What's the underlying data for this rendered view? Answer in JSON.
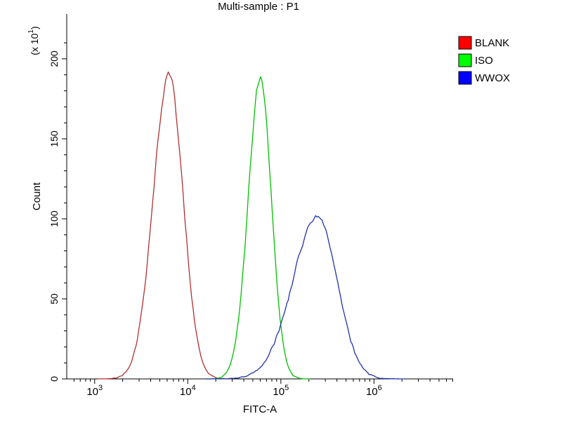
{
  "window": {
    "background": "#ffffff"
  },
  "chart_data": {
    "type": "line",
    "chart_kind": "flow-cytometry-histogram",
    "title": "Multi-sample : P1",
    "xlabel": "FITC-A",
    "ylabel": "Count",
    "y_axis_multiplier_label": "(x 10^1)",
    "x_scale": "log10",
    "x_range_log10": [
      2.7,
      6.85
    ],
    "ylim": [
      0,
      228
    ],
    "y_ticks": [
      0,
      50,
      100,
      150,
      200
    ],
    "y_minor_tick_step": 10,
    "x_ticks": [
      {
        "value": 1000,
        "label": "10^3"
      },
      {
        "value": 10000,
        "label": "10^4"
      },
      {
        "value": 100000,
        "label": "10^5"
      },
      {
        "value": 1000000,
        "label": "10^6"
      }
    ],
    "grid": false,
    "legend_position": "top-right",
    "axis_color": "#000000",
    "series": [
      {
        "name": "BLANK",
        "curve_color": "#b23030",
        "legend_color": "#ff0000",
        "peak_x": 6300,
        "peak_count": 190,
        "sigma_log10_left": 0.17,
        "sigma_log10_right": 0.15,
        "points": [
          [
            2000,
            3
          ],
          [
            3160,
            40
          ],
          [
            4470,
            129
          ],
          [
            6300,
            190
          ],
          [
            8910,
            115
          ],
          [
            12600,
            26
          ],
          [
            20000,
            1
          ]
        ]
      },
      {
        "name": "ISO",
        "curve_color": "#00c000",
        "legend_color": "#00ff00",
        "peak_x": 60000,
        "peak_count": 186,
        "sigma_log10_left": 0.13,
        "sigma_log10_right": 0.12,
        "points": [
          [
            25100,
            3
          ],
          [
            35500,
            39
          ],
          [
            44700,
            113
          ],
          [
            60000,
            186
          ],
          [
            79400,
            113
          ],
          [
            100000,
            35
          ],
          [
            141000,
            2
          ]
        ]
      },
      {
        "name": "WWOX",
        "curve_color": "#2233aa",
        "legend_color": "#0000ff",
        "peak_x": 250000,
        "peak_count": 101,
        "sigma_log10_left": 0.27,
        "sigma_log10_right": 0.21,
        "points": [
          [
            50100,
            4
          ],
          [
            100000,
            34
          ],
          [
            158000,
            77
          ],
          [
            251000,
            101
          ],
          [
            398000,
            64
          ],
          [
            631000,
            16
          ],
          [
            1000000,
            2
          ]
        ]
      }
    ]
  }
}
